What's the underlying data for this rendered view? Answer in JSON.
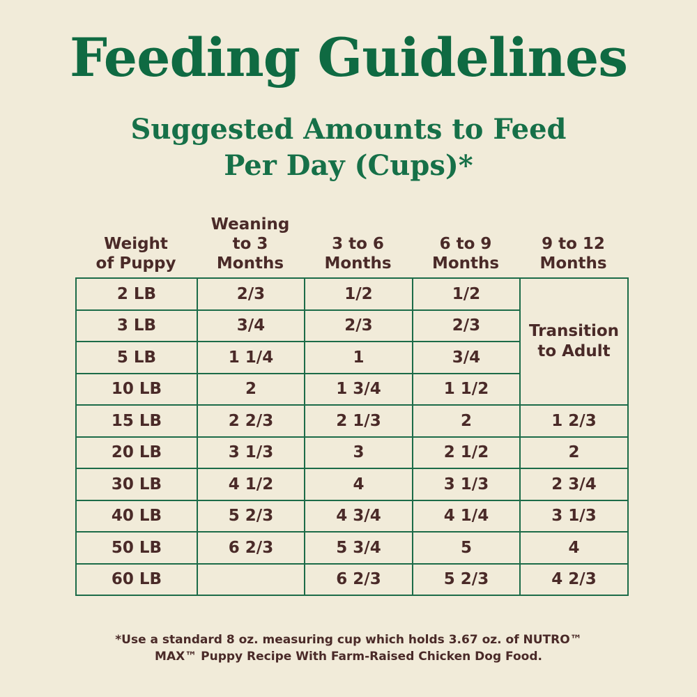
{
  "title": "Feeding Guidelines",
  "subtitle": {
    "line1": "Suggested Amounts to Feed",
    "line2": "Per Day (Cups)*"
  },
  "headers": [
    "Weight\nof Puppy",
    "Weaning\nto 3\nMonths",
    "3 to 6\nMonths",
    "6 to 9\nMonths",
    "9 to 12\nMonths"
  ],
  "transition_label": "Transition\nto Adult",
  "rows": [
    [
      "2 LB",
      "2/3",
      "1/2",
      "1/2"
    ],
    [
      "3 LB",
      "3/4",
      "2/3",
      "2/3"
    ],
    [
      "5 LB",
      "1 1/4",
      "1",
      "3/4"
    ],
    [
      "10 LB",
      "2",
      "1 3/4",
      "1 1/2"
    ],
    [
      "15 LB",
      "2 2/3",
      "2 1/3",
      "2",
      "1 2/3"
    ],
    [
      "20 LB",
      "3 1/3",
      "3",
      "2 1/2",
      "2"
    ],
    [
      "30 LB",
      "4 1/2",
      "4",
      "3 1/3",
      "2 3/4"
    ],
    [
      "40 LB",
      "5 2/3",
      "4 3/4",
      "4 1/4",
      "3 1/3"
    ],
    [
      "50 LB",
      "6 2/3",
      "5 3/4",
      "5",
      "4"
    ],
    [
      "60 LB",
      "",
      "6 2/3",
      "5 2/3",
      "4 2/3"
    ]
  ],
  "footnote": {
    "line1": "*Use a standard 8 oz. measuring cup which holds 3.67 oz. of NUTRO™",
    "line2": "MAX™ Puppy Recipe With Farm-Raised Chicken Dog Food."
  },
  "colors": {
    "background": "#f1ebd9",
    "green": "#0f6a42",
    "text": "#4a2a28"
  }
}
